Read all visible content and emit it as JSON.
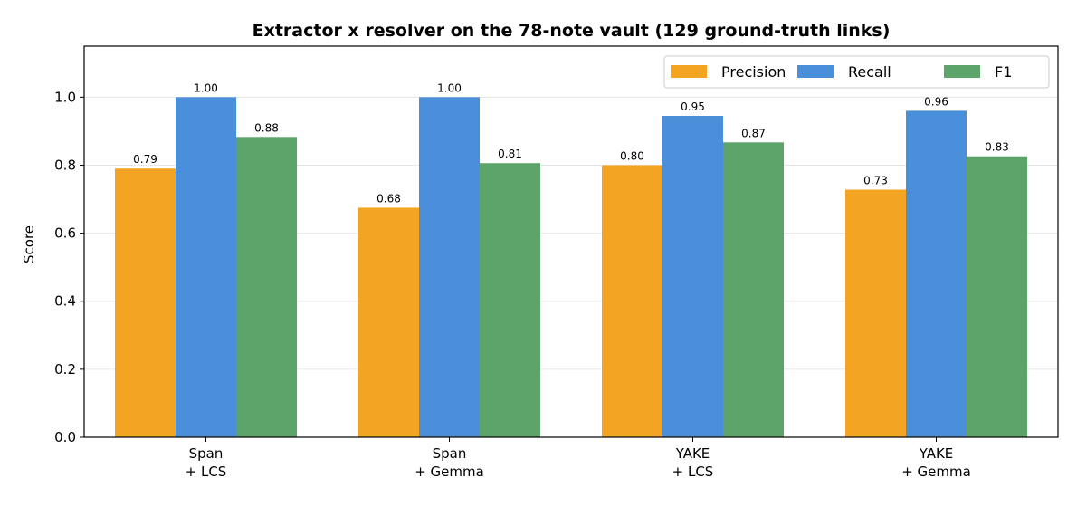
{
  "chart_data": {
    "type": "bar",
    "title": "Extractor x resolver on the 78-note vault (129 ground-truth links)",
    "ylabel": "Score",
    "xlabel": "",
    "ylim": [
      0,
      1.15
    ],
    "yticks": [
      0.0,
      0.2,
      0.4,
      0.6,
      0.8,
      1.0
    ],
    "ytick_labels": [
      "0.0",
      "0.2",
      "0.4",
      "0.6",
      "0.8",
      "1.0"
    ],
    "grid": "horizontal",
    "legend_position": "top-right",
    "categories": [
      [
        "Span",
        "+ LCS"
      ],
      [
        "Span",
        "+ Gemma"
      ],
      [
        "YAKE",
        "+ LCS"
      ],
      [
        "YAKE",
        "+ Gemma"
      ]
    ],
    "series": [
      {
        "name": "Precision",
        "color": "#F4A423",
        "values": [
          0.79,
          0.675,
          0.8,
          0.728
        ],
        "labels": [
          "0.79",
          "0.68",
          "0.80",
          "0.73"
        ]
      },
      {
        "name": "Recall",
        "color": "#4A8FD9",
        "values": [
          1.0,
          1.0,
          0.945,
          0.96
        ],
        "labels": [
          "1.00",
          "1.00",
          "0.95",
          "0.96"
        ]
      },
      {
        "name": "F1",
        "color": "#5DA46A",
        "values": [
          0.883,
          0.806,
          0.867,
          0.826
        ],
        "labels": [
          "0.88",
          "0.81",
          "0.87",
          "0.83"
        ]
      }
    ]
  }
}
